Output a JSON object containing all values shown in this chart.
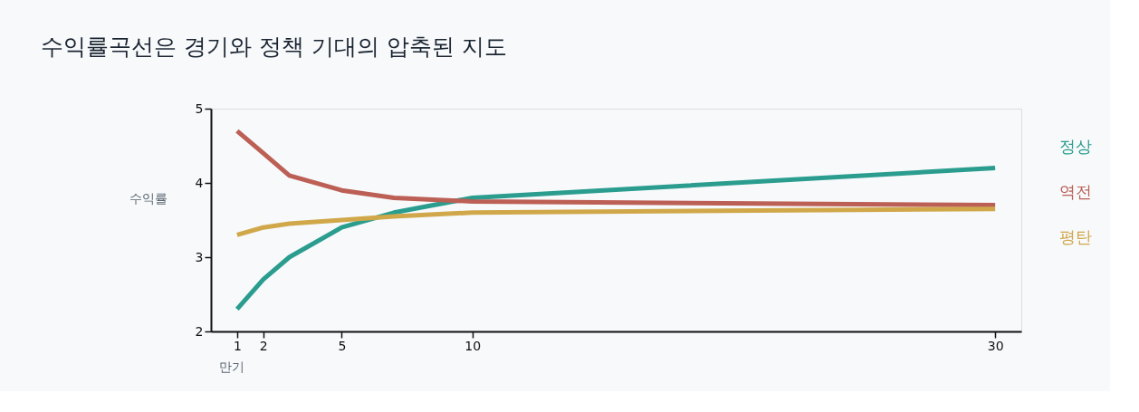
{
  "chart_data": {
    "type": "line",
    "title": "수익률곡선은 경기와 정책 기대의 압축된 지도",
    "xlabel": "만기",
    "ylabel": "수익률",
    "x": [
      1,
      2,
      3,
      5,
      7,
      10,
      30
    ],
    "series": [
      {
        "name": "정상",
        "color": "#2a9d8f",
        "values": [
          2.3,
          2.7,
          3.0,
          3.4,
          3.6,
          3.8,
          4.2
        ]
      },
      {
        "name": "역전",
        "color": "#bc5f55",
        "values": [
          4.7,
          4.4,
          4.1,
          3.9,
          3.8,
          3.75,
          3.7
        ]
      },
      {
        "name": "평탄",
        "color": "#d0a84a",
        "values": [
          3.3,
          3.4,
          3.45,
          3.5,
          3.55,
          3.6,
          3.65
        ]
      }
    ],
    "xlim": [
      0,
      31
    ],
    "xticks": [
      1,
      2,
      5,
      10,
      30
    ],
    "ylim": [
      2,
      5
    ],
    "yticks": [
      2,
      3,
      4,
      5
    ],
    "grid": false,
    "legend": false,
    "marker": "none",
    "line_style": "solid"
  }
}
